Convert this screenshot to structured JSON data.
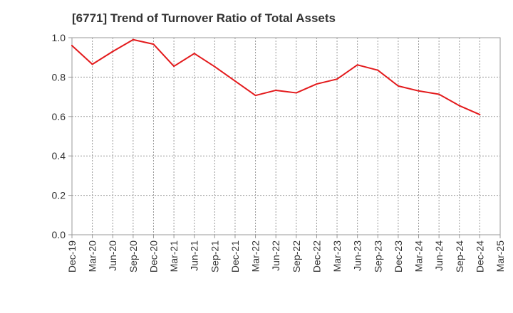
{
  "chart_data": {
    "type": "line",
    "title": "[6771]  Trend of Turnover Ratio of Total Assets",
    "xlabel": "",
    "ylabel": "",
    "ylim": [
      0.0,
      1.0
    ],
    "y_ticks": [
      "0.0",
      "0.2",
      "0.4",
      "0.6",
      "0.8",
      "1.0"
    ],
    "categories": [
      "Dec-19",
      "Mar-20",
      "Jun-20",
      "Sep-20",
      "Dec-20",
      "Mar-21",
      "Jun-21",
      "Sep-21",
      "Dec-21",
      "Mar-22",
      "Jun-22",
      "Sep-22",
      "Dec-22",
      "Mar-23",
      "Jun-23",
      "Sep-23",
      "Dec-23",
      "Mar-24",
      "Jun-24",
      "Sep-24",
      "Dec-24",
      "Mar-25"
    ],
    "series": [
      {
        "values": [
          0.96,
          0.865,
          0.93,
          0.99,
          0.967,
          0.855,
          0.92,
          0.853,
          0.78,
          0.707,
          0.733,
          0.72,
          0.765,
          0.79,
          0.862,
          0.835,
          0.755,
          0.73,
          0.713,
          0.655,
          0.61,
          null
        ],
        "color": "#e31a1c"
      }
    ],
    "grid": {
      "vertical": true,
      "horizontal": true,
      "style": "dotted"
    }
  }
}
